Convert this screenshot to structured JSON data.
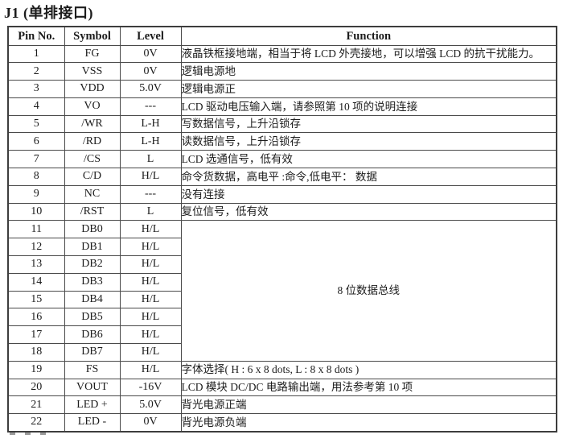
{
  "page": {
    "title": "J1 (单排接口)"
  },
  "colors": {
    "background": "#ffffff",
    "text": "#1c1c1c",
    "border": "#4a4a4a"
  },
  "table": {
    "headers": {
      "pin": "Pin No.",
      "symbol": "Symbol",
      "level": "Level",
      "function": "Function"
    },
    "merged_function": {
      "text": "8 位数据总线",
      "rowspan": 8
    },
    "rows": [
      {
        "pin": "1",
        "symbol": "FG",
        "level": "0V",
        "function": "液晶铁框接地端，相当于将 LCD 外壳接地，可以增强 LCD 的抗干扰能力。"
      },
      {
        "pin": "2",
        "symbol": "VSS",
        "level": "0V",
        "function": "逻辑电源地"
      },
      {
        "pin": "3",
        "symbol": "VDD",
        "level": "5.0V",
        "function": "逻辑电源正"
      },
      {
        "pin": "4",
        "symbol": "VO",
        "level": "---",
        "function": "LCD 驱动电压输入端，请参照第 10 项的说明连接"
      },
      {
        "pin": "5",
        "symbol": "/WR",
        "level": "L-H",
        "function": "写数据信号，上升沿锁存"
      },
      {
        "pin": "6",
        "symbol": "/RD",
        "level": "L-H",
        "function": "读数据信号，上升沿锁存"
      },
      {
        "pin": "7",
        "symbol": "/CS",
        "level": "L",
        "function": "LCD 选通信号，低有效"
      },
      {
        "pin": "8",
        "symbol": "C/D",
        "level": "H/L",
        "function": "命令货数据，高电平 :命令,低电平： 数据"
      },
      {
        "pin": "9",
        "symbol": "NC",
        "level": "---",
        "function": "没有连接"
      },
      {
        "pin": "10",
        "symbol": "/RST",
        "level": "L",
        "function": "复位信号，低有效"
      },
      {
        "pin": "11",
        "symbol": "DB0",
        "level": "H/L",
        "merged_start": true
      },
      {
        "pin": "12",
        "symbol": "DB1",
        "level": "H/L"
      },
      {
        "pin": "13",
        "symbol": "DB2",
        "level": "H/L"
      },
      {
        "pin": "14",
        "symbol": "DB3",
        "level": "H/L"
      },
      {
        "pin": "15",
        "symbol": "DB4",
        "level": "H/L"
      },
      {
        "pin": "16",
        "symbol": "DB5",
        "level": "H/L"
      },
      {
        "pin": "17",
        "symbol": "DB6",
        "level": "H/L"
      },
      {
        "pin": "18",
        "symbol": "DB7",
        "level": "H/L"
      },
      {
        "pin": "19",
        "symbol": "FS",
        "level": "H/L",
        "function": "字体选择( H : 6 x 8 dots, L : 8 x 8 dots )"
      },
      {
        "pin": "20",
        "symbol": "VOUT",
        "level": "-16V",
        "function": "LCD 模块 DC/DC 电路输出端，用法参考第 10 项"
      },
      {
        "pin": "21",
        "symbol": "LED +",
        "level": "5.0V",
        "function": "背光电源正端"
      },
      {
        "pin": "22",
        "symbol": "LED -",
        "level": "0V",
        "function": "背光电源负端"
      }
    ]
  }
}
